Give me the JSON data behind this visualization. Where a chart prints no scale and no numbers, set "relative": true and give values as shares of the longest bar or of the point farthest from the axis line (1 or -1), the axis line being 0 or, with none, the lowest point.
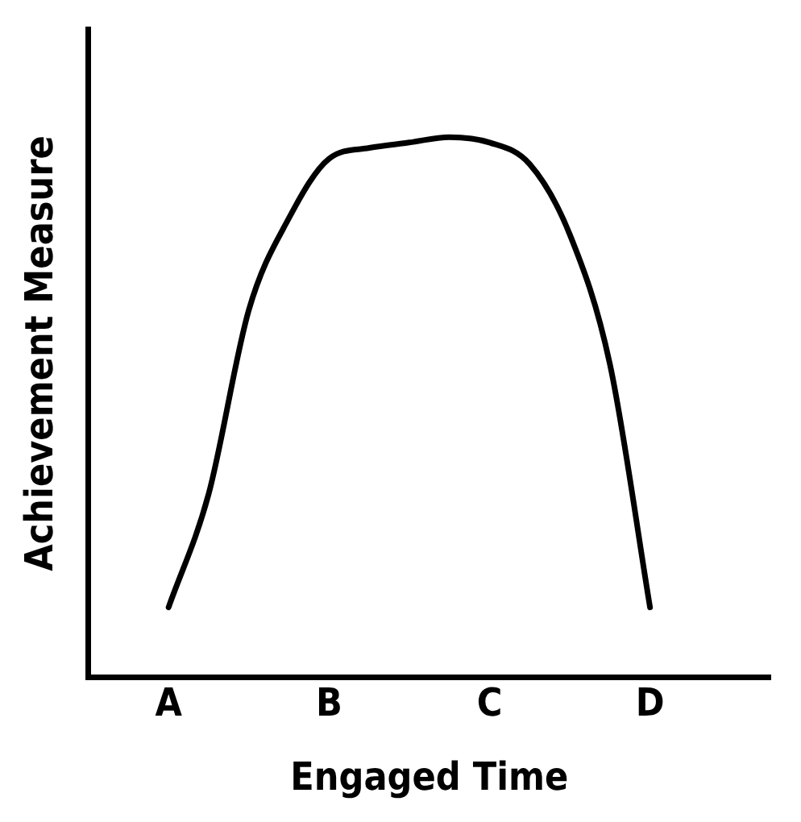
{
  "chart_data": {
    "type": "line",
    "xlabel": "Engaged Time",
    "ylabel": "Achievement Measure",
    "relative": true,
    "categories": [
      null,
      null,
      "A",
      null,
      null,
      null,
      "B",
      null,
      null,
      null,
      "C",
      null,
      null,
      null,
      "D",
      null,
      null,
      null
    ],
    "values": [
      null,
      null,
      0.13,
      0.34,
      0.68,
      0.85,
      0.96,
      0.98,
      0.99,
      1.0,
      0.99,
      0.95,
      0.82,
      0.58,
      0.13,
      null,
      null,
      null
    ],
    "color": "#000000",
    "marker": "none",
    "grid": false,
    "legend": false
  }
}
